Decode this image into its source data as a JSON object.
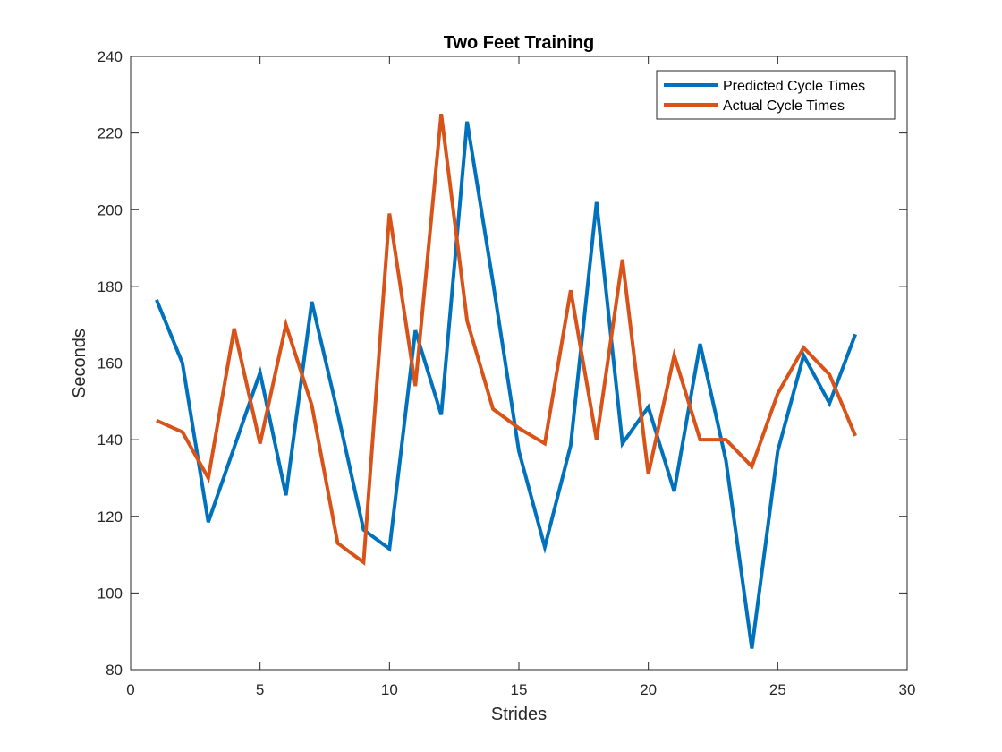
{
  "chart_data": {
    "type": "line",
    "title": "Two Feet Training",
    "xlabel": "Strides",
    "ylabel": "Seconds",
    "xlim": [
      0,
      30
    ],
    "ylim": [
      80,
      240
    ],
    "xticks": [
      0,
      5,
      10,
      15,
      20,
      25,
      30
    ],
    "yticks": [
      80,
      100,
      120,
      140,
      160,
      180,
      200,
      220,
      240
    ],
    "grid": false,
    "legend_position": "top-right",
    "x": [
      1,
      2,
      3,
      4,
      5,
      6,
      7,
      8,
      9,
      10,
      11,
      12,
      13,
      14,
      15,
      16,
      17,
      18,
      19,
      20,
      21,
      22,
      23,
      24,
      25,
      26,
      27,
      28
    ],
    "series": [
      {
        "name": "Predicted Cycle Times",
        "color": "#0072BD",
        "values": [
          176.5,
          160,
          118.5,
          138,
          157.5,
          125.5,
          176,
          147,
          116.5,
          111.5,
          168.5,
          146.5,
          223,
          181,
          137,
          112,
          138.5,
          202,
          139,
          148.5,
          126.5,
          165,
          134.5,
          85.5,
          137,
          162,
          149.5,
          167.5
        ]
      },
      {
        "name": "Actual Cycle Times",
        "color": "#D95319",
        "values": [
          145,
          142,
          130,
          169,
          139,
          170,
          149,
          113,
          108,
          199,
          154,
          225,
          171,
          148,
          143,
          139,
          179,
          140,
          187,
          131,
          162,
          140,
          140,
          133,
          152,
          164,
          157,
          141
        ]
      }
    ]
  }
}
